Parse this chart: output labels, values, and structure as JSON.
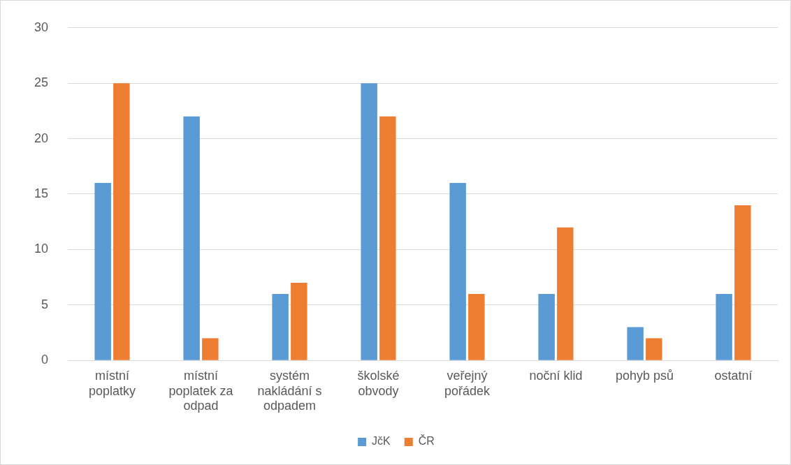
{
  "chart_data": {
    "type": "bar",
    "categories": [
      "místní poplatky",
      "místní poplatek za odpad",
      "systém nakládání s odpadem",
      "školské obvody",
      "veřejný pořádek",
      "noční klid",
      "pohyb psů",
      "ostatní"
    ],
    "series": [
      {
        "name": "JčK",
        "color": "#5b9bd5",
        "values": [
          16,
          22,
          6,
          25,
          16,
          6,
          3,
          6
        ]
      },
      {
        "name": "ČR",
        "color": "#ed7d31",
        "values": [
          25,
          2,
          7,
          22,
          6,
          12,
          2,
          14
        ]
      }
    ],
    "ylim": [
      0,
      30
    ],
    "yticks": [
      0,
      5,
      10,
      15,
      20,
      25,
      30
    ],
    "grid": "y",
    "legend": "bottom"
  }
}
